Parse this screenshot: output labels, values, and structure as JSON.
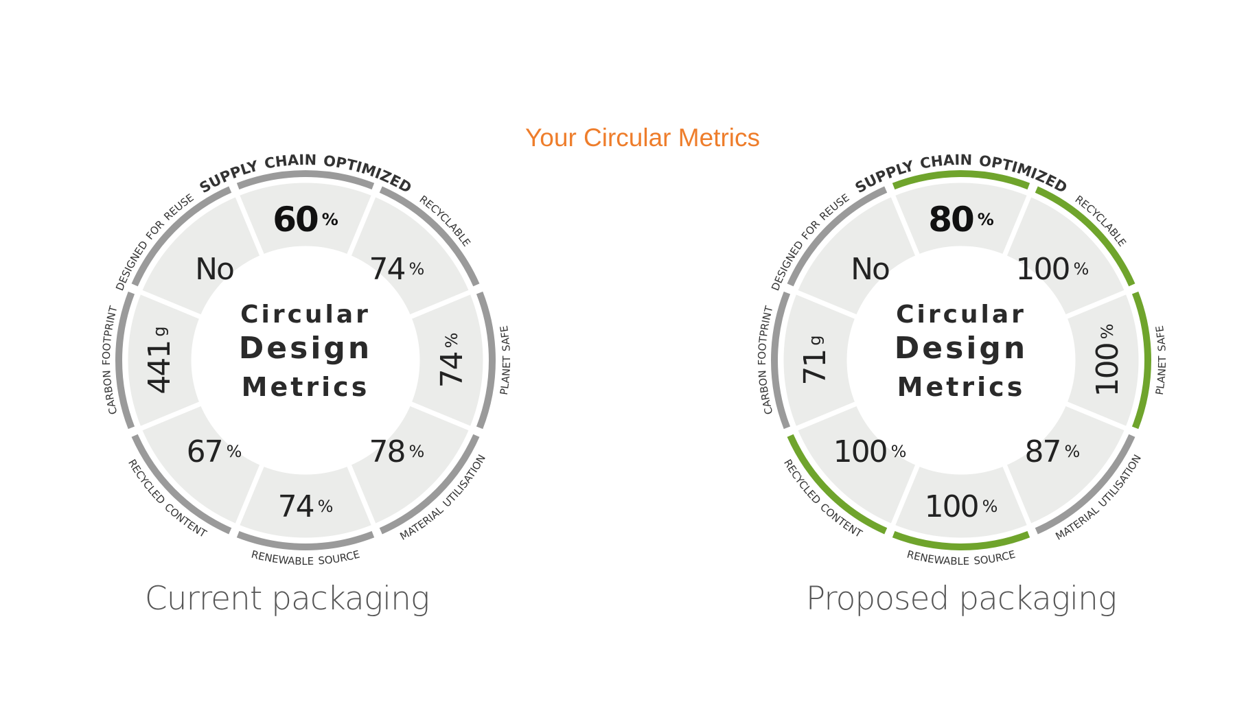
{
  "title": "Your Circular Metrics",
  "center_text": [
    "Circular",
    "Design",
    "Metrics"
  ],
  "colors": {
    "title": "#ee7d2b",
    "ring_default": "#9a9a9a",
    "ring_highlight": "#6fa42c",
    "sector_fill": "#ebecea",
    "text": "#222222"
  },
  "panels": [
    {
      "caption": "Current packaging",
      "metrics": [
        {
          "label": "SUPPLY CHAIN OPTIMIZED",
          "value": "60",
          "unit": "%",
          "highlighted": false
        },
        {
          "label": "RECYCLABLE",
          "value": "74",
          "unit": "%",
          "highlighted": false
        },
        {
          "label": "PLANET SAFE",
          "value": "74",
          "unit": "%",
          "highlighted": false
        },
        {
          "label": "MATERIAL UTILISATION",
          "value": "78",
          "unit": "%",
          "highlighted": false
        },
        {
          "label": "RENEWABLE SOURCE",
          "value": "74",
          "unit": "%",
          "highlighted": false
        },
        {
          "label": "RECYCLED CONTENT",
          "value": "67",
          "unit": "%",
          "highlighted": false
        },
        {
          "label": "CARBON FOOTPRINT",
          "value": "441",
          "unit": "g",
          "highlighted": false
        },
        {
          "label": "DESIGNED FOR REUSE",
          "value": "No",
          "unit": "",
          "highlighted": false
        }
      ]
    },
    {
      "caption": "Proposed packaging",
      "metrics": [
        {
          "label": "SUPPLY CHAIN OPTIMIZED",
          "value": "80",
          "unit": "%",
          "highlighted": true
        },
        {
          "label": "RECYCLABLE",
          "value": "100",
          "unit": "%",
          "highlighted": true
        },
        {
          "label": "PLANET SAFE",
          "value": "100",
          "unit": "%",
          "highlighted": true
        },
        {
          "label": "MATERIAL UTILISATION",
          "value": "87",
          "unit": "%",
          "highlighted": false
        },
        {
          "label": "RENEWABLE SOURCE",
          "value": "100",
          "unit": "%",
          "highlighted": true
        },
        {
          "label": "RECYCLED CONTENT",
          "value": "100",
          "unit": "%",
          "highlighted": true
        },
        {
          "label": "CARBON FOOTPRINT",
          "value": "71",
          "unit": "g",
          "highlighted": false
        },
        {
          "label": "DESIGNED FOR REUSE",
          "value": "No",
          "unit": "",
          "highlighted": false
        }
      ]
    }
  ]
}
